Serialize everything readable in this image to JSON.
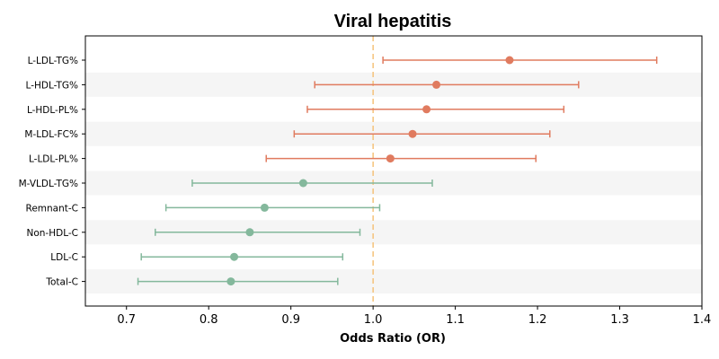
{
  "chart_data": {
    "type": "forest",
    "title": "Viral hepatitis",
    "xlabel": "Odds Ratio (OR)",
    "xlim": [
      0.65,
      1.4
    ],
    "xticks": [
      0.7,
      0.8,
      0.9,
      1.0,
      1.1,
      1.2,
      1.3,
      1.4
    ],
    "xtick_labels": [
      "0.7",
      "0.8",
      "0.9",
      "1.0",
      "1.1",
      "1.2",
      "1.3",
      "1.4"
    ],
    "reference_line": 1.0,
    "reference_color": "#f5c27a",
    "colors": {
      "positive": "#e07b5f",
      "negative": "#84b89c",
      "band": "#f5f5f5"
    },
    "rows": [
      {
        "label": "L-LDL-TG%",
        "or": 1.166,
        "lo": 1.012,
        "hi": 1.345
      },
      {
        "label": "L-HDL-TG%",
        "or": 1.077,
        "lo": 0.929,
        "hi": 1.25
      },
      {
        "label": "L-HDL-PL%",
        "or": 1.065,
        "lo": 0.92,
        "hi": 1.232
      },
      {
        "label": "M-LDL-FC%",
        "or": 1.048,
        "lo": 0.904,
        "hi": 1.215
      },
      {
        "label": "L-LDL-PL%",
        "or": 1.021,
        "lo": 0.87,
        "hi": 1.198
      },
      {
        "label": "M-VLDL-TG%",
        "or": 0.915,
        "lo": 0.78,
        "hi": 1.072
      },
      {
        "label": "Remnant-C",
        "or": 0.868,
        "lo": 0.748,
        "hi": 1.008
      },
      {
        "label": "Non-HDL-C",
        "or": 0.85,
        "lo": 0.735,
        "hi": 0.984
      },
      {
        "label": "LDL-C",
        "or": 0.831,
        "lo": 0.718,
        "hi": 0.963
      },
      {
        "label": "Total-C",
        "or": 0.827,
        "lo": 0.714,
        "hi": 0.957
      }
    ]
  }
}
